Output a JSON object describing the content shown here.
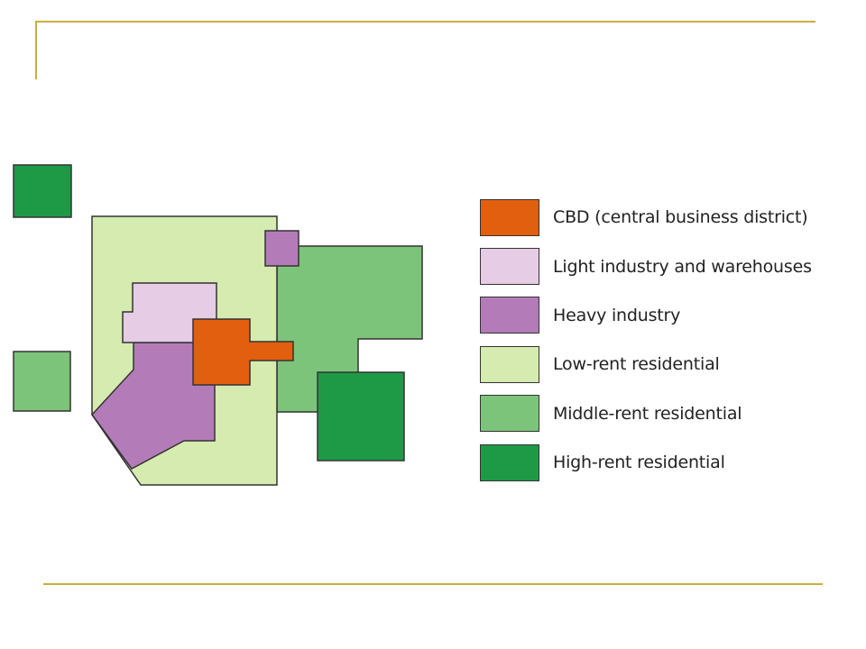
{
  "colors": {
    "cbd": "#e25f0f",
    "light_industry": "#e6cce4",
    "heavy_industry": "#b37cb8",
    "low_rent": "#d6ebb0",
    "middle_rent": "#7dc47b",
    "high_rent": "#1e9a47",
    "decor_line": "#c9b03c",
    "outline": "#333333"
  },
  "legend": {
    "items": [
      {
        "key": "cbd",
        "label": "CBD (central business district)"
      },
      {
        "key": "light_industry",
        "label": "Light industry and warehouses"
      },
      {
        "key": "heavy_industry",
        "label": "Heavy industry"
      },
      {
        "key": "low_rent",
        "label": "Low-rent residential"
      },
      {
        "key": "middle_rent",
        "label": "Middle-rent residential"
      },
      {
        "key": "high_rent",
        "label": "High-rent residential"
      }
    ]
  }
}
